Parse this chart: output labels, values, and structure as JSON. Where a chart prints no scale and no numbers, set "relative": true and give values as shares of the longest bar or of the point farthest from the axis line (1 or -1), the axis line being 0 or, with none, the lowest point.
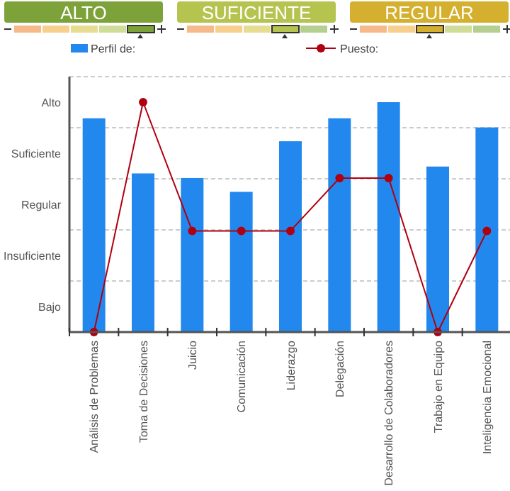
{
  "chart_data": {
    "type": "bar",
    "relative": true,
    "categories": [
      "Análisis de Problemas",
      "Toma de Decisiones",
      "Juicio",
      "Comunicación",
      "Liderazgo",
      "Delegación",
      "Desarrollo de Colaboradores",
      "Trabajo en Equipo",
      "Inteligencia Emocional"
    ],
    "series": [
      {
        "name": "Perfil de:",
        "color": "#2288ee",
        "values": [
          0.93,
          0.69,
          0.67,
          0.61,
          0.83,
          0.93,
          1,
          0.72,
          0.89
        ]
      },
      {
        "name": "Puesto:",
        "type": "line",
        "color": "#b00010",
        "values": [
          0,
          1,
          0.44,
          0.44,
          0.44,
          0.67,
          0.67,
          0,
          0.44
        ]
      }
    ],
    "grid": "y",
    "legend": "top",
    "marker": "circle",
    "line_style": "solid",
    "annotations": [
      "ALTO",
      "SUFICIENTE",
      "REGULAR",
      "Bajo",
      "Insuficiente",
      "Regular",
      "Suficiente",
      "Alto"
    ]
  }
}
